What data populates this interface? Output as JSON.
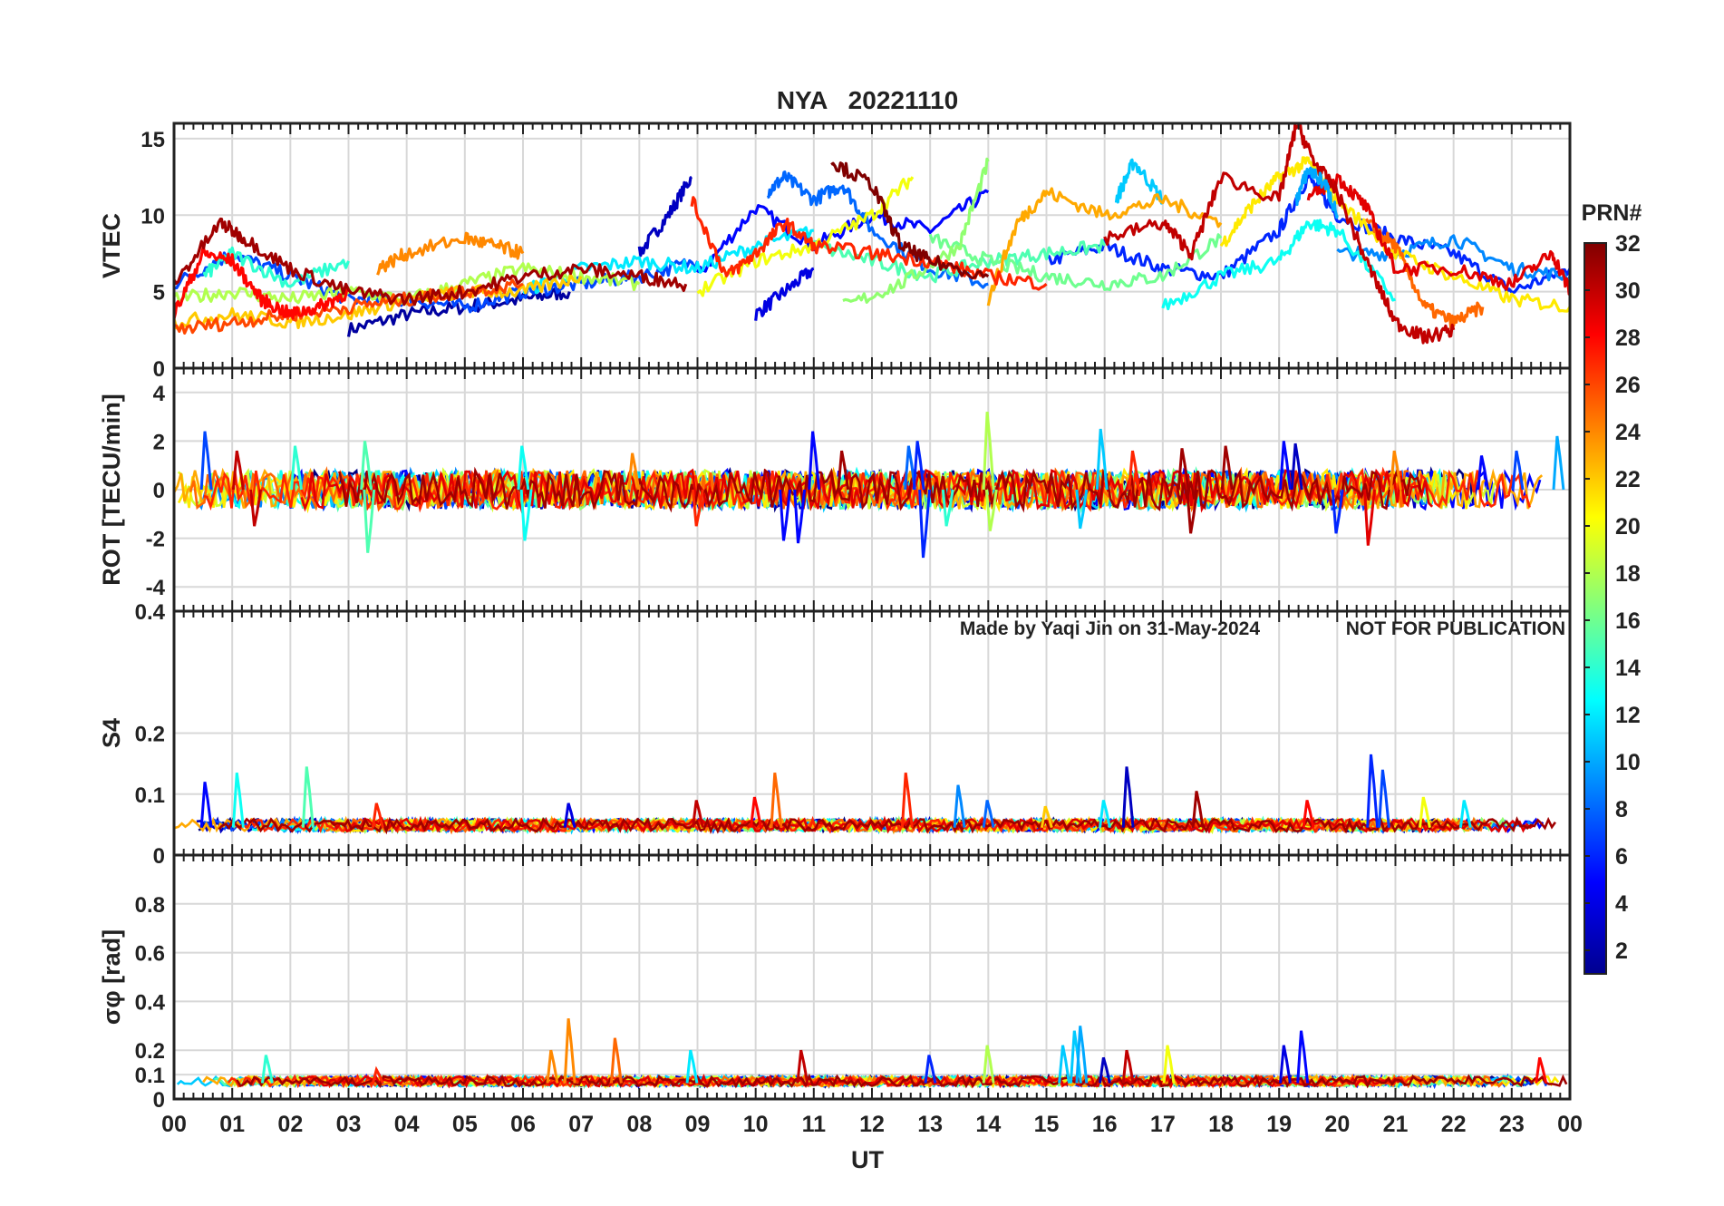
{
  "chart_data": {
    "type": "line",
    "title": "NYA   20221110",
    "title_color": "#ff0000",
    "xlabel": "UT",
    "x_ticks": [
      "00",
      "01",
      "02",
      "03",
      "04",
      "05",
      "06",
      "07",
      "08",
      "09",
      "10",
      "11",
      "12",
      "13",
      "14",
      "15",
      "16",
      "17",
      "18",
      "19",
      "20",
      "21",
      "22",
      "23",
      "00"
    ],
    "xlim": [
      0,
      24
    ],
    "watermark": {
      "left": "Made by Yaqi Jin on 31-May-2024",
      "right": "NOT FOR PUBLICATION",
      "color": "#8c8c8c"
    },
    "colorbar": {
      "label": "PRN#",
      "range": [
        1,
        32
      ],
      "ticks": [
        "32",
        "30",
        "28",
        "26",
        "24",
        "22",
        "20",
        "18",
        "16",
        "14",
        "12",
        "10",
        "8",
        "6",
        "4",
        "2"
      ],
      "colormap": "jet"
    },
    "panels": [
      {
        "id": "vtec",
        "ylabel": "VTEC",
        "ylim": [
          0,
          16
        ],
        "yticks": [
          "0",
          "5",
          "10",
          "15"
        ],
        "series": [
          {
            "prn": 2,
            "x": [
              3.0,
              4.0,
              5.0,
              6.0,
              6.8
            ],
            "y": [
              2.5,
              3.5,
              4.0,
              4.5,
              5.0
            ]
          },
          {
            "prn": 3,
            "x": [
              8.0,
              8.5,
              8.9
            ],
            "y": [
              7.5,
              10.0,
              12.5
            ]
          },
          {
            "prn": 4,
            "x": [
              10.0,
              10.5,
              11.0
            ],
            "y": [
              3.5,
              5.0,
              6.5
            ]
          },
          {
            "prn": 5,
            "x": [
              9.0,
              10.0,
              11.0,
              12.0,
              13.0,
              14.0
            ],
            "y": [
              6.0,
              10.5,
              8.0,
              10.0,
              9.0,
              11.5
            ]
          },
          {
            "prn": 6,
            "x": [
              15.0,
              16.0,
              17.0,
              18.0,
              19.0,
              19.5,
              20.0,
              21.0,
              22.0,
              23.0,
              24.0
            ],
            "y": [
              7.0,
              8.0,
              6.5,
              6.0,
              9.0,
              12.5,
              10.0,
              8.5,
              7.5,
              5.0,
              6.5
            ]
          },
          {
            "prn": 7,
            "x": [
              0.0,
              1.0,
              2.0,
              3.0,
              4.0,
              5.0,
              6.0,
              7.0,
              8.0,
              9.0
            ],
            "y": [
              5.5,
              7.5,
              6.0,
              4.5,
              4.5,
              4.0,
              5.0,
              5.5,
              6.0,
              7.0
            ]
          },
          {
            "prn": 8,
            "x": [
              10.2,
              10.5,
              11.0,
              11.5,
              12.0,
              13.0,
              14.0
            ],
            "y": [
              11.5,
              12.5,
              11.0,
              12.0,
              9.0,
              6.5,
              5.5
            ]
          },
          {
            "prn": 9,
            "x": [
              20.0,
              21.0,
              22.0,
              23.0,
              24.0
            ],
            "y": [
              7.5,
              7.5,
              8.5,
              6.5,
              6.0
            ]
          },
          {
            "prn": 11,
            "x": [
              16.2,
              16.5,
              17.0
            ],
            "y": [
              11.0,
              13.5,
              11.0
            ]
          },
          {
            "prn": 12,
            "x": [
              6.0,
              7.0,
              8.0,
              9.0,
              10.0,
              11.0
            ],
            "y": [
              5.0,
              6.5,
              7.0,
              6.5,
              8.0,
              9.0
            ]
          },
          {
            "prn": 13,
            "x": [
              17.0,
              18.0,
              19.0,
              19.5,
              20.0,
              21.0
            ],
            "y": [
              4.0,
              6.0,
              7.0,
              9.5,
              9.0,
              4.5
            ]
          },
          {
            "prn": 14,
            "x": [
              0.5,
              1.0,
              2.0,
              3.0
            ],
            "y": [
              6.0,
              7.5,
              5.5,
              7.0
            ]
          },
          {
            "prn": 15,
            "x": [
              11.0,
              12.0,
              13.0,
              14.0,
              15.0,
              16.0
            ],
            "y": [
              8.0,
              7.0,
              6.0,
              7.0,
              7.5,
              8.0
            ]
          },
          {
            "prn": 16,
            "x": [
              13.0,
              14.0,
              15.0,
              16.0,
              17.0,
              18.0
            ],
            "y": [
              8.5,
              7.0,
              6.0,
              5.5,
              6.0,
              8.5
            ]
          },
          {
            "prn": 17,
            "x": [
              11.5,
              12.5,
              13.5,
              14.0
            ],
            "y": [
              4.0,
              5.5,
              8.0,
              13.5
            ]
          },
          {
            "prn": 18,
            "x": [
              0.0,
              1.0,
              2.0,
              3.0,
              4.0,
              5.0,
              6.0,
              7.0,
              8.0
            ],
            "y": [
              4.5,
              5.0,
              4.5,
              5.0,
              4.5,
              5.5,
              6.5,
              6.0,
              5.5
            ]
          },
          {
            "prn": 20,
            "x": [
              9.0,
              10.0,
              11.0,
              12.0,
              12.7
            ],
            "y": [
              5.0,
              7.0,
              8.0,
              10.0,
              12.5
            ]
          },
          {
            "prn": 21,
            "x": [
              18.0,
              18.5,
              19.0,
              19.5,
              20.0,
              21.0,
              22.0,
              23.0,
              24.0
            ],
            "y": [
              8.0,
              10.5,
              12.5,
              13.5,
              11.0,
              7.5,
              6.0,
              4.5,
              4.0
            ]
          },
          {
            "prn": 22,
            "x": [
              0.0,
              1.0,
              2.0,
              3.0,
              4.0,
              5.0,
              6.0,
              7.0
            ],
            "y": [
              3.0,
              3.5,
              3.0,
              3.5,
              4.5,
              5.0,
              5.0,
              6.0
            ]
          },
          {
            "prn": 23,
            "x": [
              14.0,
              14.5,
              15.0,
              16.0,
              17.0,
              18.0
            ],
            "y": [
              4.5,
              9.5,
              11.5,
              10.0,
              11.0,
              9.5
            ]
          },
          {
            "prn": 24,
            "x": [
              3.5,
              4.0,
              5.0,
              5.5,
              6.0
            ],
            "y": [
              6.5,
              7.5,
              8.5,
              8.0,
              7.5
            ]
          },
          {
            "prn": 25,
            "x": [
              20.5,
              21.0,
              21.5,
              22.0,
              22.5
            ],
            "y": [
              9.5,
              8.0,
              4.0,
              3.0,
              4.0
            ]
          },
          {
            "prn": 26,
            "x": [
              0.0,
              1.0,
              2.0,
              3.0,
              4.0,
              5.0,
              6.0
            ],
            "y": [
              2.5,
              3.0,
              3.5,
              4.0,
              4.5,
              5.0,
              5.5
            ]
          },
          {
            "prn": 27,
            "x": [
              8.9,
              9.5,
              10.0,
              10.5,
              11.0,
              12.0,
              13.0,
              14.0,
              15.0
            ],
            "y": [
              11.0,
              6.0,
              7.5,
              9.5,
              8.0,
              7.5,
              7.0,
              6.0,
              5.5
            ]
          },
          {
            "prn": 28,
            "x": [
              0.0,
              0.5,
              1.0,
              1.5,
              2.0,
              2.5,
              3.0
            ],
            "y": [
              3.5,
              7.5,
              7.0,
              4.5,
              3.5,
              4.0,
              5.0
            ]
          },
          {
            "prn": 29,
            "x": [
              19.5,
              20.0,
              20.5,
              21.0,
              22.0,
              23.0,
              23.7,
              24.0
            ],
            "y": [
              11.0,
              12.5,
              10.5,
              6.5,
              6.5,
              5.5,
              7.5,
              5.0
            ]
          },
          {
            "prn": 31,
            "x": [
              0.0,
              0.8,
              1.2,
              2.0,
              3.0,
              4.0,
              5.0,
              6.0,
              7.0,
              8.0,
              8.8
            ],
            "y": [
              5.5,
              9.5,
              8.5,
              6.5,
              5.0,
              4.5,
              5.0,
              6.0,
              6.5,
              6.0,
              5.5
            ]
          },
          {
            "prn": 32,
            "x": [
              11.3,
              12.0,
              12.5,
              13.0,
              14.0
            ],
            "y": [
              13.5,
              12.0,
              8.0,
              7.0,
              6.0
            ]
          },
          {
            "prn": 30,
            "x": [
              16.0,
              17.0,
              17.5,
              18.0,
              19.0,
              19.3,
              19.6,
              20.0,
              20.5,
              21.0,
              21.5,
              22.0
            ],
            "y": [
              8.5,
              9.5,
              7.5,
              12.5,
              11.0,
              16.0,
              13.5,
              11.5,
              7.0,
              3.0,
              2.0,
              2.5
            ]
          },
          {
            "prn": 10,
            "x": [
              19.3,
              19.5,
              19.8,
              20.0
            ],
            "y": [
              11.0,
              13.0,
              12.0,
              10.0
            ]
          }
        ]
      },
      {
        "id": "rot",
        "ylabel": "ROT [TECU/min]",
        "ylim": [
          -5,
          5
        ],
        "yticks": [
          "-4",
          "-2",
          "0",
          "2",
          "4"
        ],
        "spikes": [
          {
            "x": 0.55,
            "v": 2.4,
            "prn": 7
          },
          {
            "x": 1.1,
            "v": 1.6,
            "prn": 30
          },
          {
            "x": 1.4,
            "v": -1.5,
            "prn": 30
          },
          {
            "x": 2.1,
            "v": 1.8,
            "prn": 14
          },
          {
            "x": 3.3,
            "v": 2.0,
            "prn": 15
          },
          {
            "x": 3.35,
            "v": -2.6,
            "prn": 15
          },
          {
            "x": 6.0,
            "v": 1.8,
            "prn": 13
          },
          {
            "x": 6.05,
            "v": -2.1,
            "prn": 13
          },
          {
            "x": 7.9,
            "v": 1.5,
            "prn": 24
          },
          {
            "x": 9.0,
            "v": -1.5,
            "prn": 27
          },
          {
            "x": 10.5,
            "v": -2.1,
            "prn": 5
          },
          {
            "x": 10.75,
            "v": -2.2,
            "prn": 5
          },
          {
            "x": 11.0,
            "v": 2.4,
            "prn": 5
          },
          {
            "x": 11.5,
            "v": 1.6,
            "prn": 31
          },
          {
            "x": 12.65,
            "v": 1.8,
            "prn": 8
          },
          {
            "x": 12.8,
            "v": 2.0,
            "prn": 6
          },
          {
            "x": 12.9,
            "v": -2.8,
            "prn": 6
          },
          {
            "x": 13.3,
            "v": -1.5,
            "prn": 14
          },
          {
            "x": 14.0,
            "v": 3.2,
            "prn": 18
          },
          {
            "x": 14.05,
            "v": -1.7,
            "prn": 18
          },
          {
            "x": 15.6,
            "v": -1.6,
            "prn": 11
          },
          {
            "x": 15.95,
            "v": 2.5,
            "prn": 11
          },
          {
            "x": 16.5,
            "v": 1.6,
            "prn": 27
          },
          {
            "x": 17.35,
            "v": 1.7,
            "prn": 31
          },
          {
            "x": 17.5,
            "v": -1.8,
            "prn": 31
          },
          {
            "x": 18.1,
            "v": 1.8,
            "prn": 31
          },
          {
            "x": 19.1,
            "v": 2.0,
            "prn": 5
          },
          {
            "x": 19.3,
            "v": 1.9,
            "prn": 3
          },
          {
            "x": 20.0,
            "v": -1.8,
            "prn": 6
          },
          {
            "x": 20.55,
            "v": -2.3,
            "prn": 29
          },
          {
            "x": 21.0,
            "v": 1.6,
            "prn": 24
          },
          {
            "x": 22.5,
            "v": 1.4,
            "prn": 5
          },
          {
            "x": 23.1,
            "v": 1.6,
            "prn": 7
          },
          {
            "x": 23.8,
            "v": 2.2,
            "prn": 10
          }
        ]
      },
      {
        "id": "s4",
        "ylabel": "S4",
        "ylim": [
          0,
          0.4
        ],
        "yticks": [
          "0",
          "0.1",
          "0.2",
          "0.4"
        ],
        "spikes": [
          {
            "x": 0.55,
            "v": 0.12,
            "prn": 5
          },
          {
            "x": 1.1,
            "v": 0.135,
            "prn": 13
          },
          {
            "x": 2.3,
            "v": 0.145,
            "prn": 15
          },
          {
            "x": 3.5,
            "v": 0.085,
            "prn": 27
          },
          {
            "x": 6.8,
            "v": 0.085,
            "prn": 4
          },
          {
            "x": 9.0,
            "v": 0.09,
            "prn": 30
          },
          {
            "x": 10.0,
            "v": 0.095,
            "prn": 28
          },
          {
            "x": 10.35,
            "v": 0.135,
            "prn": 25
          },
          {
            "x": 12.6,
            "v": 0.135,
            "prn": 27
          },
          {
            "x": 13.5,
            "v": 0.115,
            "prn": 9
          },
          {
            "x": 14.0,
            "v": 0.09,
            "prn": 8
          },
          {
            "x": 15.0,
            "v": 0.08,
            "prn": 22
          },
          {
            "x": 16.0,
            "v": 0.09,
            "prn": 12
          },
          {
            "x": 16.4,
            "v": 0.145,
            "prn": 3
          },
          {
            "x": 17.6,
            "v": 0.105,
            "prn": 31
          },
          {
            "x": 19.5,
            "v": 0.09,
            "prn": 28
          },
          {
            "x": 20.6,
            "v": 0.165,
            "prn": 6
          },
          {
            "x": 20.8,
            "v": 0.14,
            "prn": 7
          },
          {
            "x": 21.5,
            "v": 0.095,
            "prn": 20
          },
          {
            "x": 22.2,
            "v": 0.09,
            "prn": 12
          }
        ]
      },
      {
        "id": "sigma_phi",
        "ylabel": "σφ [rad]",
        "ylim": [
          0,
          1
        ],
        "yticks": [
          "0",
          "0.1",
          "0.2",
          "0.4",
          "0.6",
          "0.8"
        ],
        "spikes": [
          {
            "x": 1.6,
            "v": 0.18,
            "prn": 14
          },
          {
            "x": 3.5,
            "v": 0.12,
            "prn": 27
          },
          {
            "x": 6.5,
            "v": 0.2,
            "prn": 24
          },
          {
            "x": 6.8,
            "v": 0.33,
            "prn": 24
          },
          {
            "x": 7.6,
            "v": 0.25,
            "prn": 25
          },
          {
            "x": 8.9,
            "v": 0.2,
            "prn": 12
          },
          {
            "x": 10.8,
            "v": 0.2,
            "prn": 30
          },
          {
            "x": 13.0,
            "v": 0.18,
            "prn": 6
          },
          {
            "x": 14.0,
            "v": 0.22,
            "prn": 18
          },
          {
            "x": 15.3,
            "v": 0.22,
            "prn": 11
          },
          {
            "x": 15.5,
            "v": 0.28,
            "prn": 11
          },
          {
            "x": 15.6,
            "v": 0.3,
            "prn": 10
          },
          {
            "x": 16.0,
            "v": 0.17,
            "prn": 3
          },
          {
            "x": 16.4,
            "v": 0.2,
            "prn": 30
          },
          {
            "x": 17.1,
            "v": 0.22,
            "prn": 20
          },
          {
            "x": 19.1,
            "v": 0.22,
            "prn": 4
          },
          {
            "x": 19.4,
            "v": 0.28,
            "prn": 5
          },
          {
            "x": 23.5,
            "v": 0.17,
            "prn": 28
          }
        ]
      }
    ]
  }
}
